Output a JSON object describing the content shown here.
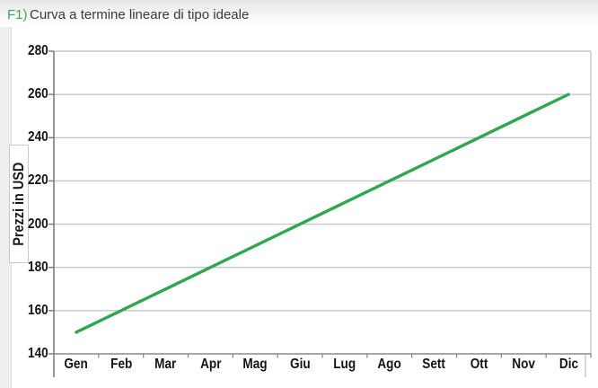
{
  "header": {
    "figure_label": "F1)",
    "title_text": "Curva a termine lineare di tipo ideale"
  },
  "chart_data": {
    "type": "line",
    "title": "F1) Curva a termine lineare di tipo ideale",
    "categories": [
      "Gen",
      "Feb",
      "Mar",
      "Apr",
      "Mag",
      "Giu",
      "Lug",
      "Ago",
      "Sett",
      "Ott",
      "Nov",
      "Dic"
    ],
    "values": [
      150,
      160,
      170,
      180,
      190,
      200,
      210,
      220,
      230,
      240,
      250,
      260
    ],
    "xlabel": "",
    "ylabel": "Prezzi in USD",
    "ylim": [
      140,
      280
    ],
    "ytick_step": 20,
    "grid": true,
    "legend": "none"
  },
  "colors": {
    "line_green": "#2ea84f",
    "title_green": "#3aa857",
    "title_text": "#3a3a3a",
    "grid": "#c6c6c6",
    "axis": "#8a8a8a",
    "axis_left": "#777777",
    "plot_border": "#c4c4c4",
    "tick_text": "#141414"
  }
}
